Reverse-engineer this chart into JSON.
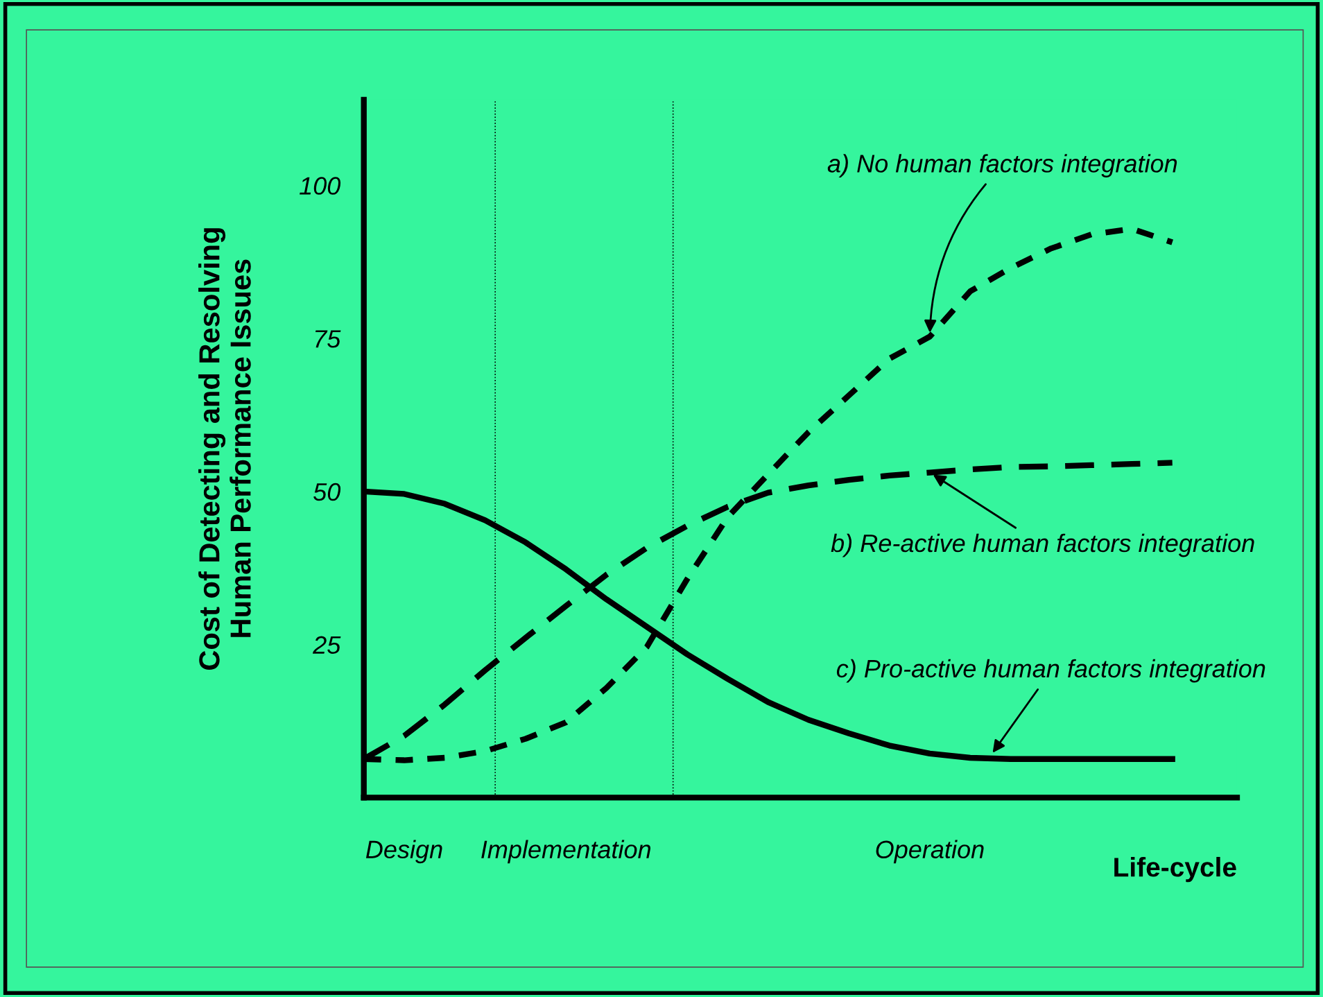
{
  "chart_data": {
    "type": "line",
    "xlabel": "Life-cycle",
    "ylabel": "Cost of Detecting and Resolving\nHuman Performance Issues",
    "categories": [
      null,
      "Design",
      null,
      null,
      null,
      "Implementation",
      null,
      null,
      null,
      null,
      null,
      null,
      null,
      null,
      "Operation",
      null,
      null,
      null,
      null,
      null,
      null
    ],
    "ylim": [
      0,
      114
    ],
    "yticks": [
      25,
      50,
      75,
      100
    ],
    "grid": false,
    "legend": false,
    "series": [
      {
        "color": "#000000",
        "line_style": "dashed",
        "values": [
          6.3,
          6.1,
          6.5,
          7.6,
          9.6,
          12.3,
          17.9,
          24.6,
          35.7,
          45.8,
          52.8,
          59.7,
          65.7,
          71.7,
          75.3,
          82.7,
          86.5,
          89.7,
          92,
          92.9,
          90.7
        ]
      },
      {
        "color": "#000000",
        "line_style": "dashed",
        "values": [
          6.3,
          10.1,
          15.2,
          20.8,
          26.1,
          31.3,
          36.4,
          40.8,
          44.4,
          47.5,
          49.8,
          51.0,
          51.9,
          52.6,
          53.1,
          53.6,
          54.0,
          54.1,
          54.3,
          54.5,
          54.7
        ]
      },
      {
        "color": "#000000",
        "line_style": "solid",
        "values": [
          50,
          49.6,
          48,
          45.3,
          41.7,
          37.3,
          32.4,
          27.9,
          23.4,
          19.4,
          15.6,
          12.7,
          10.5,
          8.5,
          7.2,
          6.5,
          6.3,
          6.3,
          6.3,
          6.3,
          6.3
        ]
      }
    ],
    "annotations": [
      {
        "text": "a) No human factors integration",
        "x": "Operation",
        "y": 75.3
      },
      {
        "text": "b) Re-active human factors integration",
        "x": "Operation",
        "y": 53.1
      },
      {
        "text": "c) Pro-active human factors integration",
        "y": 6.8
      }
    ]
  }
}
